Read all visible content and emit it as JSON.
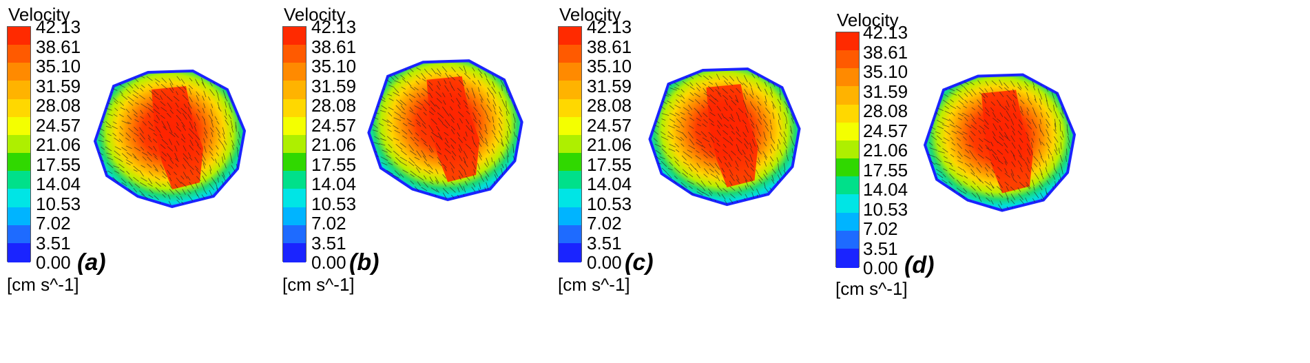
{
  "legend": {
    "title": "Velocity",
    "units": "[cm s^-1]",
    "ticks": [
      "42.13",
      "38.61",
      "35.10",
      "31.59",
      "28.08",
      "24.57",
      "21.06",
      "17.55",
      "14.04",
      "10.53",
      "7.02",
      "3.51",
      "0.00"
    ],
    "colors": [
      "#ff2a00",
      "#ff5a00",
      "#ff8a00",
      "#ffb300",
      "#ffd800",
      "#f4ff00",
      "#aeef00",
      "#30d800",
      "#00e08a",
      "#00e5e5",
      "#00b4ff",
      "#1e6bff",
      "#1a24ff"
    ]
  },
  "panels": [
    {
      "label": "(a)"
    },
    {
      "label": "(b)"
    },
    {
      "label": "(c)"
    },
    {
      "label": "(d)"
    }
  ]
}
